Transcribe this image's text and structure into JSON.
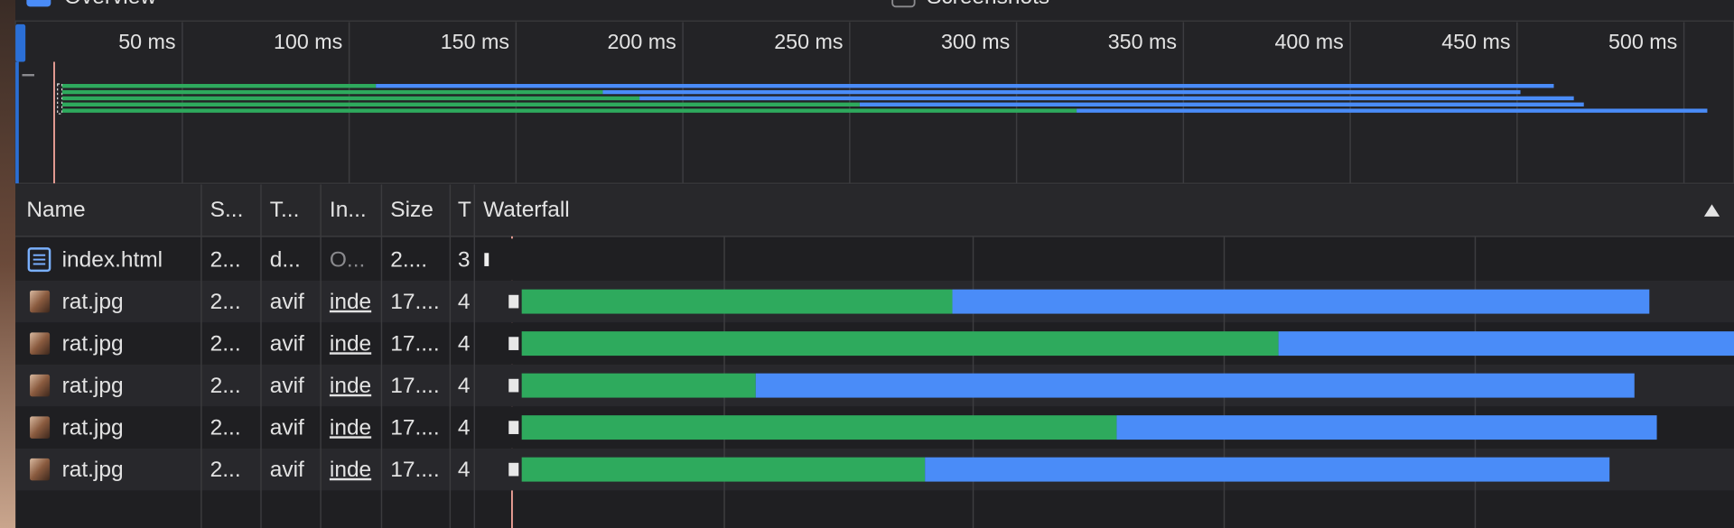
{
  "toolbar": {
    "overview": "Overview",
    "screenshots": "Screenshots"
  },
  "overview": {
    "xlim": [
      0,
      515
    ],
    "ticks": [
      {
        "value": 50,
        "label": "50 ms"
      },
      {
        "value": 100,
        "label": "100 ms"
      },
      {
        "value": 150,
        "label": "150 ms"
      },
      {
        "value": 200,
        "label": "200 ms"
      },
      {
        "value": 250,
        "label": "250 ms"
      },
      {
        "value": 300,
        "label": "300 ms"
      },
      {
        "value": 350,
        "label": "350 ms"
      },
      {
        "value": 400,
        "label": "400 ms"
      },
      {
        "value": 450,
        "label": "450 ms"
      },
      {
        "value": 500,
        "label": "500 ms"
      }
    ]
  },
  "table": {
    "headers": [
      "Name",
      "S...",
      "T...",
      "In...",
      "Size",
      "T",
      "Waterfall"
    ],
    "rows": [
      [
        "index.html",
        "2...",
        "d...",
        "O...",
        "2....",
        "3"
      ],
      [
        "rat.jpg",
        "2...",
        "avif",
        "inde",
        "17....",
        "4"
      ],
      [
        "rat.jpg",
        "2...",
        "avif",
        "inde",
        "17....",
        "4"
      ],
      [
        "rat.jpg",
        "2...",
        "avif",
        "inde",
        "17....",
        "4"
      ],
      [
        "rat.jpg",
        "2...",
        "avif",
        "inde",
        "17....",
        "4"
      ],
      [
        "rat.jpg",
        "2...",
        "avif",
        "inde",
        "17....",
        "4"
      ]
    ]
  },
  "waterfall": {
    "xlim": [
      -5,
      501
    ],
    "colors": {
      "waiting": "#2eaa5d",
      "download": "#4a8cf8"
    },
    "timings": [
      {
        "start": 14,
        "download": 187,
        "end": 467
      },
      {
        "start": 14,
        "download": 318,
        "end": 507
      },
      {
        "start": 14,
        "download": 108,
        "end": 461
      },
      {
        "start": 14,
        "download": 253,
        "end": 470
      },
      {
        "start": 14,
        "download": 176,
        "end": 451
      }
    ]
  }
}
